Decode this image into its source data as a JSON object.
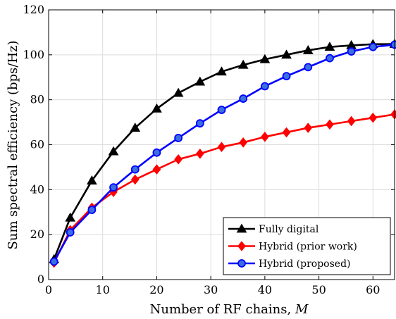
{
  "chart_data": {
    "type": "line",
    "xlabel": "Number of RF chains, M",
    "xlabel_prefix": "Number of RF chains, ",
    "xlabel_var": "M",
    "ylabel": "Sum spectral efficiency (bps/Hz)",
    "xlim": [
      0,
      64
    ],
    "ylim": [
      0,
      120
    ],
    "xticks": [
      0,
      10,
      20,
      30,
      40,
      50,
      60
    ],
    "yticks": [
      0,
      20,
      40,
      60,
      80,
      100,
      120
    ],
    "grid": true,
    "legend_position": "bottom-right",
    "series": [
      {
        "name": "Fully digital",
        "color": "#000000",
        "marker": "triangle",
        "x": [
          1,
          4,
          8,
          12,
          16,
          20,
          24,
          28,
          32,
          36,
          40,
          44,
          48,
          52,
          56,
          60,
          64
        ],
        "y": [
          9,
          27.5,
          44,
          57,
          67.5,
          76,
          83,
          88,
          92.5,
          95.5,
          98,
          100,
          102,
          103.5,
          104.2,
          104.7,
          104.8
        ]
      },
      {
        "name": "Hybrid (prior work)",
        "color": "#ff0000",
        "marker": "diamond",
        "x": [
          1,
          4,
          8,
          12,
          16,
          20,
          24,
          28,
          32,
          36,
          40,
          44,
          48,
          52,
          56,
          60,
          64
        ],
        "y": [
          7.5,
          22,
          32,
          39,
          44.5,
          49,
          53.5,
          56,
          59,
          61,
          63.5,
          65.5,
          67.5,
          69,
          70.5,
          72,
          73.5
        ]
      },
      {
        "name": "Hybrid (proposed)",
        "color": "#0000ff",
        "marker": "circle",
        "x": [
          1,
          4,
          8,
          12,
          16,
          20,
          24,
          28,
          32,
          36,
          40,
          44,
          48,
          52,
          56,
          60,
          64
        ],
        "y": [
          8,
          21,
          31,
          41,
          49,
          56.5,
          63,
          69.5,
          75.5,
          80.5,
          86,
          90.5,
          94.5,
          98.5,
          101.5,
          103.5,
          104.5
        ]
      }
    ]
  }
}
